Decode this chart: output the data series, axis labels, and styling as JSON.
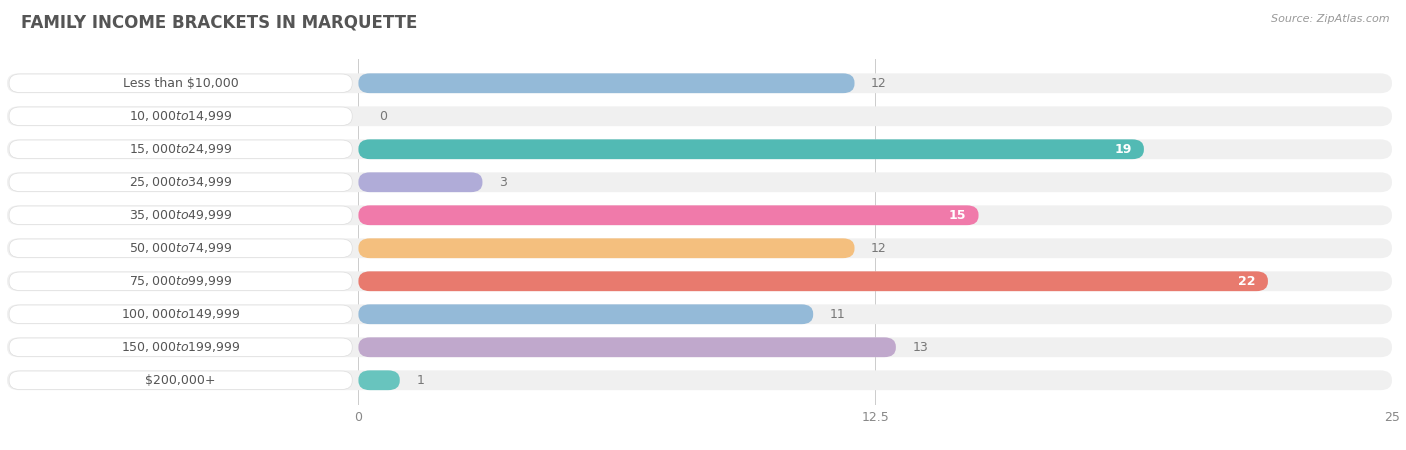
{
  "title": "FAMILY INCOME BRACKETS IN MARQUETTE",
  "source": "Source: ZipAtlas.com",
  "categories": [
    "Less than $10,000",
    "$10,000 to $14,999",
    "$15,000 to $24,999",
    "$25,000 to $34,999",
    "$35,000 to $49,999",
    "$50,000 to $74,999",
    "$75,000 to $99,999",
    "$100,000 to $149,999",
    "$150,000 to $199,999",
    "$200,000+"
  ],
  "values": [
    12,
    0,
    19,
    3,
    15,
    12,
    22,
    11,
    13,
    1
  ],
  "bar_colors": [
    "#94bad8",
    "#c8aacc",
    "#52bab4",
    "#b0acd8",
    "#f07aaa",
    "#f4bf7e",
    "#e87a6e",
    "#94bad8",
    "#c0a8cc",
    "#68c4be"
  ],
  "xlim": [
    0,
    25
  ],
  "xticks": [
    0,
    12.5,
    25
  ],
  "background_color": "#ffffff",
  "row_bg_color": "#f0f0f0",
  "bar_bg_color": "#e8e8e8",
  "label_bg_color": "#ffffff",
  "title_fontsize": 12,
  "label_fontsize": 9,
  "value_fontsize": 9,
  "title_color": "#555555",
  "source_color": "#999999",
  "label_color": "#555555",
  "value_color_inside": "#ffffff",
  "value_color_outside": "#777777"
}
